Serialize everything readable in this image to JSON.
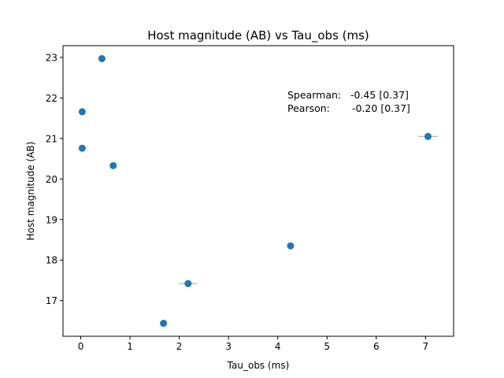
{
  "chart_data": {
    "type": "scatter",
    "title": "Host magnitude (AB) vs Tau_obs (ms)",
    "xlabel": "Tau_obs (ms)",
    "ylabel": "Host magnitude (AB)",
    "xlim": [
      -0.36,
      7.57
    ],
    "ylim": [
      16.12,
      23.29
    ],
    "xticks": [
      0,
      1,
      2,
      3,
      4,
      5,
      6,
      7
    ],
    "yticks": [
      17,
      18,
      19,
      20,
      21,
      22,
      23
    ],
    "grid": false,
    "marker_color": "#1f77b4",
    "errorbar_color": "#b0b0b0",
    "points": [
      {
        "x": 0.43,
        "y": 22.97,
        "xerr": 0
      },
      {
        "x": 0.03,
        "y": 21.66,
        "xerr": 0
      },
      {
        "x": 0.03,
        "y": 20.76,
        "xerr": 0
      },
      {
        "x": 0.66,
        "y": 20.33,
        "xerr": 0
      },
      {
        "x": 7.05,
        "y": 21.05,
        "xerr": 0.2
      },
      {
        "x": 4.26,
        "y": 18.35,
        "xerr": 0
      },
      {
        "x": 2.18,
        "y": 17.42,
        "xerr": 0.18
      },
      {
        "x": 1.68,
        "y": 16.44,
        "xerr": 0
      }
    ],
    "annotations": [
      {
        "label": "Spearman:",
        "value": "-0.45 [0.37]"
      },
      {
        "label": "Pearson:",
        "value": "-0.20 [0.37]"
      }
    ]
  }
}
